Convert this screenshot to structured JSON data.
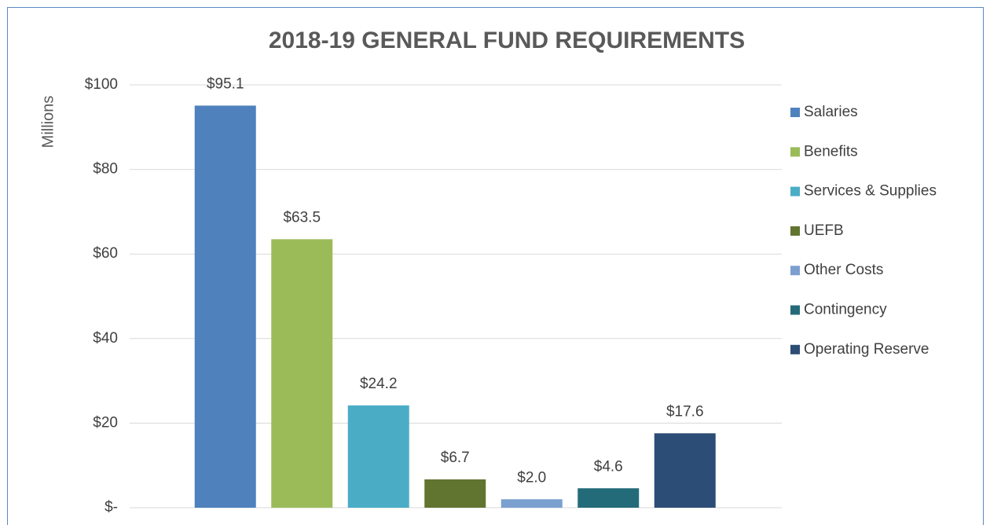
{
  "chart_data": {
    "type": "bar",
    "title": "2018-19 GENERAL FUND REQUIREMENTS",
    "ylabel": "Millions",
    "categories": [
      null
    ],
    "series": [
      {
        "name": "Salaries",
        "color": "#4f81bd",
        "values": [
          95.1
        ],
        "value_labels": [
          "$95.1"
        ]
      },
      {
        "name": "Benefits",
        "color": "#9bbb59",
        "values": [
          63.5
        ],
        "value_labels": [
          "$63.5"
        ]
      },
      {
        "name": "Services & Supplies",
        "color": "#4bacc6",
        "values": [
          24.2
        ],
        "value_labels": [
          "$24.2"
        ]
      },
      {
        "name": "UEFB",
        "color": "#617430",
        "values": [
          6.7
        ],
        "value_labels": [
          "$6.7"
        ]
      },
      {
        "name": "Other Costs",
        "color": "#7ba0cf",
        "values": [
          2.0
        ],
        "value_labels": [
          "$2.0"
        ]
      },
      {
        "name": "Contingency",
        "color": "#246b7a",
        "values": [
          4.6
        ],
        "value_labels": [
          "$4.6"
        ]
      },
      {
        "name": "Operating Reserve",
        "color": "#2c4d75",
        "values": [
          17.6
        ],
        "value_labels": [
          "$17.6"
        ]
      }
    ],
    "ylim": [
      0,
      100
    ],
    "yticks": [
      {
        "value": 0,
        "label": "$-"
      },
      {
        "value": 20,
        "label": "$20"
      },
      {
        "value": 40,
        "label": "$40"
      },
      {
        "value": 60,
        "label": "$60"
      },
      {
        "value": 80,
        "label": "$80"
      },
      {
        "value": 100,
        "label": "$100"
      }
    ],
    "grid": true,
    "legend": "right"
  }
}
